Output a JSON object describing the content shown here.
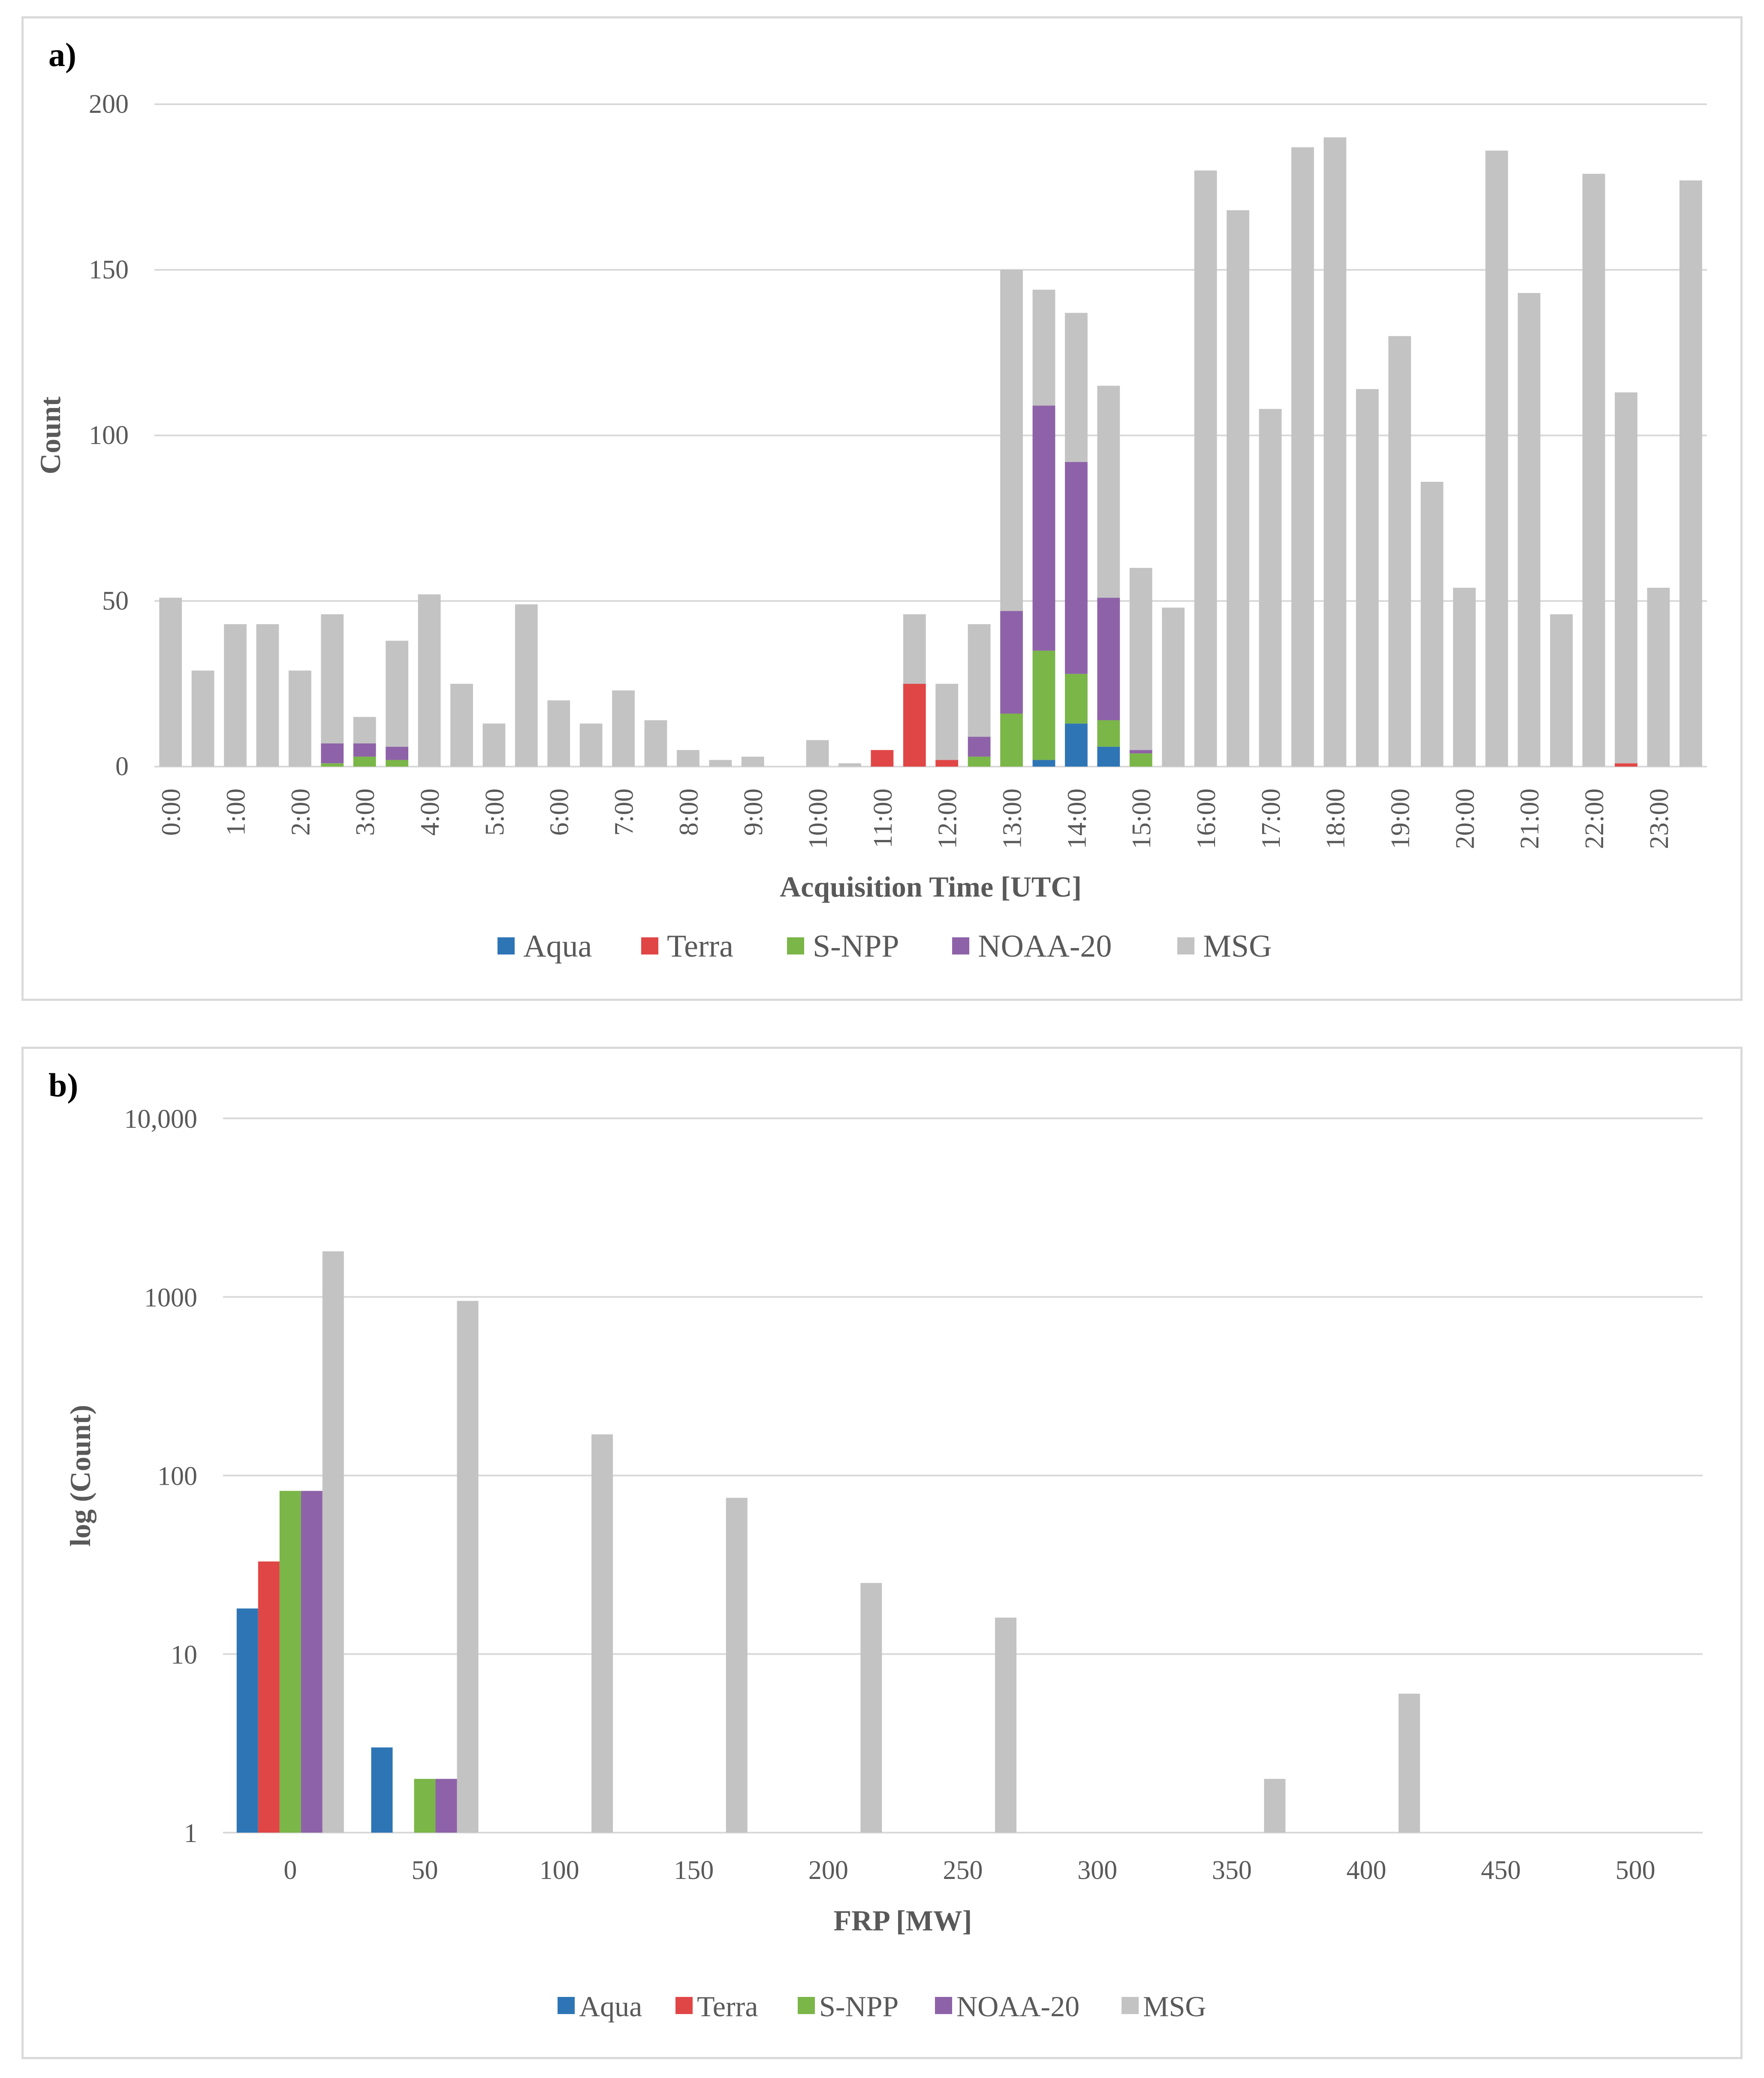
{
  "panels": {
    "a": {
      "label": "a)"
    },
    "b": {
      "label": "b)"
    }
  },
  "chart_data": [
    {
      "type": "bar",
      "stacked": true,
      "title": "",
      "xlabel": "Acquisition Time [UTC]",
      "ylabel": "Count",
      "ylim": [
        0,
        200
      ],
      "yticks": [
        0,
        50,
        100,
        150,
        200
      ],
      "grid": true,
      "legend_position": "bottom",
      "categories": [
        "0:00",
        "0:30",
        "1:00",
        "1:30",
        "2:00",
        "2:30",
        "3:00",
        "3:30",
        "4:00",
        "4:30",
        "5:00",
        "5:30",
        "6:00",
        "6:30",
        "7:00",
        "7:30",
        "8:00",
        "8:30",
        "9:00",
        "9:30",
        "10:00",
        "10:30",
        "11:00",
        "11:30",
        "12:00",
        "12:30",
        "13:00",
        "13:30",
        "14:00",
        "14:30",
        "15:00",
        "15:30",
        "16:00",
        "16:30",
        "17:00",
        "17:30",
        "18:00",
        "18:30",
        "19:00",
        "19:30",
        "20:00",
        "20:30",
        "21:00",
        "21:30",
        "22:00",
        "22:30",
        "23:00",
        "23:30"
      ],
      "tick_labels": [
        "0:00",
        "1:00",
        "2:00",
        "3:00",
        "4:00",
        "5:00",
        "6:00",
        "7:00",
        "8:00",
        "9:00",
        "10:00",
        "11:00",
        "12:00",
        "13:00",
        "14:00",
        "15:00",
        "16:00",
        "17:00",
        "18:00",
        "19:00",
        "20:00",
        "21:00",
        "22:00",
        "23:00"
      ],
      "series": [
        {
          "name": "Aqua",
          "color": "#2e75b6",
          "values": [
            0,
            0,
            0,
            0,
            0,
            0,
            0,
            0,
            0,
            0,
            0,
            0,
            0,
            0,
            0,
            0,
            0,
            0,
            0,
            0,
            0,
            0,
            0,
            0,
            0,
            0,
            0,
            2,
            13,
            6,
            0,
            0,
            0,
            0,
            0,
            0,
            0,
            0,
            0,
            0,
            0,
            0,
            0,
            0,
            0,
            0,
            0,
            0
          ]
        },
        {
          "name": "Terra",
          "color": "#e04646",
          "values": [
            0,
            0,
            0,
            0,
            0,
            0,
            0,
            0,
            0,
            0,
            0,
            0,
            0,
            0,
            0,
            0,
            0,
            0,
            0,
            0,
            0,
            0,
            5,
            25,
            2,
            0,
            0,
            0,
            0,
            0,
            0,
            0,
            0,
            0,
            0,
            0,
            0,
            0,
            0,
            0,
            0,
            0,
            0,
            0,
            0,
            1,
            0,
            0
          ]
        },
        {
          "name": "S-NPP",
          "color": "#7ab648",
          "values": [
            0,
            0,
            0,
            0,
            0,
            1,
            3,
            2,
            0,
            0,
            0,
            0,
            0,
            0,
            0,
            0,
            0,
            0,
            0,
            0,
            0,
            0,
            0,
            0,
            0,
            3,
            16,
            33,
            15,
            8,
            4,
            0,
            0,
            0,
            0,
            0,
            0,
            0,
            0,
            0,
            0,
            0,
            0,
            0,
            0,
            0,
            0,
            0
          ]
        },
        {
          "name": "NOAA-20",
          "color": "#8e62a8",
          "values": [
            0,
            0,
            0,
            0,
            0,
            6,
            4,
            4,
            0,
            0,
            0,
            0,
            0,
            0,
            0,
            0,
            0,
            0,
            0,
            0,
            0,
            0,
            0,
            0,
            0,
            6,
            31,
            74,
            64,
            37,
            1,
            0,
            0,
            0,
            0,
            0,
            0,
            0,
            0,
            0,
            0,
            0,
            0,
            0,
            0,
            0,
            0,
            0
          ]
        },
        {
          "name": "MSG",
          "color": "#c3c3c3",
          "values": [
            51,
            29,
            43,
            43,
            29,
            39,
            8,
            32,
            52,
            25,
            13,
            49,
            20,
            13,
            23,
            14,
            5,
            2,
            3,
            0,
            8,
            1,
            0,
            21,
            23,
            34,
            103,
            35,
            45,
            64,
            55,
            48,
            180,
            168,
            108,
            187,
            190,
            114,
            130,
            86,
            54,
            186,
            143,
            46,
            179,
            112,
            54,
            177
          ]
        }
      ]
    },
    {
      "type": "bar",
      "stacked": false,
      "scale": "log",
      "title": "",
      "xlabel": "FRP [MW]",
      "ylabel": "log (Count)",
      "ylim": [
        1,
        10000
      ],
      "ytick_labels": [
        "1",
        "10",
        "100",
        "1000",
        "10,000"
      ],
      "grid": true,
      "legend_position": "bottom",
      "categories": [
        "0",
        "50",
        "100",
        "150",
        "200",
        "250",
        "300",
        "350",
        "400",
        "450",
        "500"
      ],
      "series": [
        {
          "name": "Aqua",
          "color": "#2e75b6",
          "values": [
            18,
            3,
            0,
            0,
            0,
            0,
            0,
            0,
            0,
            0,
            0
          ]
        },
        {
          "name": "Terra",
          "color": "#e04646",
          "values": [
            33,
            0,
            0,
            0,
            0,
            0,
            0,
            0,
            0,
            0,
            0
          ]
        },
        {
          "name": "S-NPP",
          "color": "#7ab648",
          "values": [
            82,
            2,
            0,
            0,
            0,
            0,
            0,
            0,
            0,
            0,
            0
          ]
        },
        {
          "name": "NOAA-20",
          "color": "#8e62a8",
          "values": [
            82,
            2,
            0,
            0,
            0,
            0,
            0,
            0,
            0,
            0,
            0
          ]
        },
        {
          "name": "MSG",
          "color": "#c3c3c3",
          "values": [
            1800,
            950,
            170,
            75,
            25,
            16,
            0,
            2,
            6,
            0,
            0
          ]
        }
      ]
    }
  ]
}
